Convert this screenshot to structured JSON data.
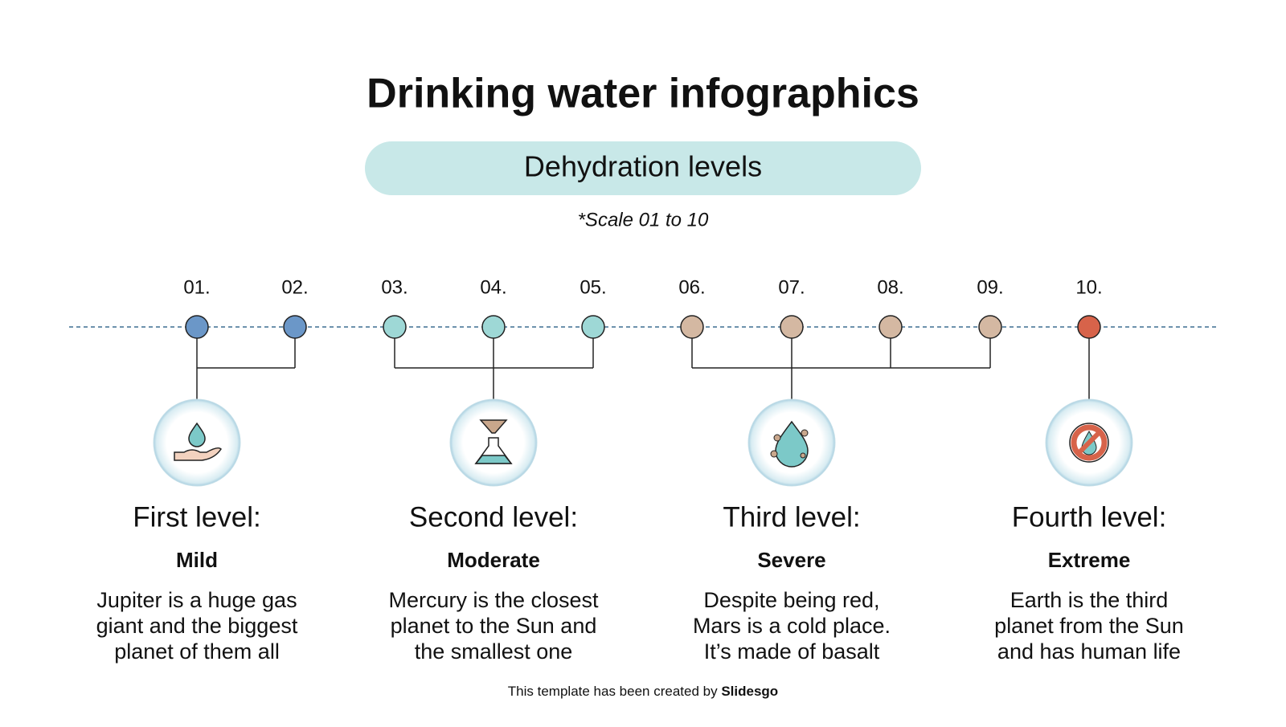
{
  "title": "Drinking water infographics",
  "subtitle": "Dehydration levels",
  "note": "*Scale 01 to 10",
  "markers": [
    {
      "label": "01.",
      "color": "#6b97c8"
    },
    {
      "label": "02.",
      "color": "#6b97c8"
    },
    {
      "label": "03.",
      "color": "#9ed8d6"
    },
    {
      "label": "04.",
      "color": "#9ed8d6"
    },
    {
      "label": "05.",
      "color": "#9ed8d6"
    },
    {
      "label": "06.",
      "color": "#d4b8a2"
    },
    {
      "label": "07.",
      "color": "#d4b8a2"
    },
    {
      "label": "08.",
      "color": "#d4b8a2"
    },
    {
      "label": "09.",
      "color": "#d4b8a2"
    },
    {
      "label": "10.",
      "color": "#d7634a"
    }
  ],
  "levels": [
    {
      "title": "First level:",
      "severity": "Mild",
      "description": [
        "Jupiter is a huge gas",
        "giant and the biggest",
        "planet of them all"
      ]
    },
    {
      "title": "Second level:",
      "severity": "Moderate",
      "description": [
        "Mercury is the closest",
        "planet to the Sun and",
        "the smallest one"
      ]
    },
    {
      "title": "Third level:",
      "severity": "Severe",
      "description": [
        "Despite being red,",
        "Mars is a cold place.",
        "It’s made of basalt"
      ]
    },
    {
      "title": "Fourth level:",
      "severity": "Extreme",
      "description": [
        "Earth is the third",
        "planet from the Sun",
        "and has human life"
      ]
    }
  ],
  "footer": {
    "text": "This template has been created by",
    "brand": "Slidesgo"
  }
}
